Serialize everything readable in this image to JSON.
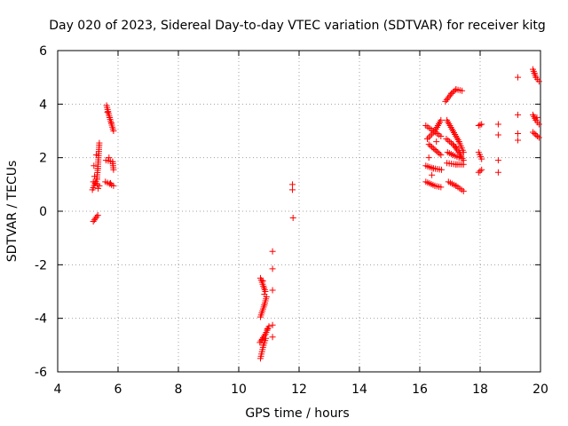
{
  "chart_data": {
    "type": "scatter",
    "title": "Day 020 of 2023, Sidereal Day-to-day VTEC variation (SDTVAR) for receiver kitg",
    "xlabel": "GPS time / hours",
    "ylabel": "SDTVAR / TECUs",
    "xlim": [
      4,
      20
    ],
    "ylim": [
      -6,
      6
    ],
    "xticks": [
      "4",
      "6",
      "8",
      "10",
      "12",
      "14",
      "16",
      "18",
      "20"
    ],
    "yticks": [
      "-6",
      "-4",
      "-2",
      "0",
      "2",
      "4",
      "6"
    ],
    "grid": true,
    "marker": "+",
    "marker_color": "#ff0000",
    "series": [
      {
        "name": "SDTVAR",
        "segments": [
          [
            [
              5.18,
              -0.38
            ],
            [
              5.33,
              -0.15
            ]
          ],
          [
            [
              5.15,
              0.8
            ],
            [
              5.3,
              1.2
            ],
            [
              5.33,
              1.6
            ],
            [
              5.38,
              2.55
            ]
          ],
          [
            [
              5.18,
              1.1
            ],
            [
              5.38,
              0.95
            ]
          ],
          [
            [
              5.62,
              3.95
            ],
            [
              5.72,
              3.5
            ],
            [
              5.85,
              3.0
            ]
          ],
          [
            [
              5.6,
              1.9
            ],
            [
              5.82,
              1.85
            ],
            [
              5.85,
              1.55
            ]
          ],
          [
            [
              5.58,
              1.1
            ],
            [
              5.85,
              0.95
            ]
          ],
          [
            [
              10.72,
              -2.5
            ],
            [
              10.82,
              -2.8
            ],
            [
              10.88,
              -3.0
            ]
          ],
          [
            [
              10.72,
              -3.95
            ],
            [
              10.85,
              -3.5
            ],
            [
              10.92,
              -3.2
            ]
          ],
          [
            [
              10.7,
              -4.9
            ],
            [
              10.88,
              -4.6
            ],
            [
              11.0,
              -4.3
            ]
          ],
          [
            [
              10.72,
              -5.5
            ],
            [
              10.82,
              -5.0
            ],
            [
              10.9,
              -4.75
            ]
          ],
          [
            [
              16.2,
              3.2
            ],
            [
              16.45,
              3.0
            ],
            [
              16.7,
              2.8
            ]
          ],
          [
            [
              16.3,
              2.5
            ],
            [
              16.5,
              2.3
            ],
            [
              16.7,
              2.1
            ]
          ],
          [
            [
              16.2,
              1.7
            ],
            [
              16.45,
              1.6
            ],
            [
              16.72,
              1.55
            ]
          ],
          [
            [
              16.2,
              1.1
            ],
            [
              16.5,
              0.95
            ],
            [
              16.7,
              0.9
            ]
          ],
          [
            [
              16.25,
              2.7
            ],
            [
              16.5,
              3.0
            ],
            [
              16.7,
              3.4
            ]
          ],
          [
            [
              16.85,
              4.1
            ],
            [
              17.05,
              4.4
            ],
            [
              17.2,
              4.55
            ],
            [
              17.4,
              4.5
            ]
          ],
          [
            [
              16.88,
              2.7
            ],
            [
              17.1,
              2.5
            ],
            [
              17.3,
              2.2
            ],
            [
              17.45,
              1.9
            ]
          ],
          [
            [
              16.9,
              3.4
            ],
            [
              17.1,
              3.0
            ],
            [
              17.3,
              2.6
            ],
            [
              17.45,
              2.2
            ]
          ],
          [
            [
              16.92,
              2.2
            ],
            [
              17.1,
              2.1
            ],
            [
              17.3,
              2.0
            ]
          ],
          [
            [
              16.9,
              1.8
            ],
            [
              17.2,
              1.75
            ],
            [
              17.45,
              1.75
            ]
          ],
          [
            [
              16.95,
              1.1
            ],
            [
              17.2,
              0.95
            ],
            [
              17.45,
              0.75
            ]
          ],
          [
            [
              17.95,
              3.2
            ],
            [
              18.05,
              3.25
            ]
          ],
          [
            [
              17.95,
              2.2
            ],
            [
              18.05,
              1.95
            ]
          ],
          [
            [
              17.95,
              1.45
            ],
            [
              18.05,
              1.55
            ]
          ],
          [
            [
              19.75,
              5.3
            ],
            [
              19.85,
              5.0
            ],
            [
              19.95,
              4.85
            ]
          ],
          [
            [
              19.75,
              3.6
            ],
            [
              19.85,
              3.4
            ],
            [
              19.95,
              3.25
            ]
          ],
          [
            [
              19.75,
              2.95
            ],
            [
              19.95,
              2.75
            ]
          ]
        ],
        "points": [
          [
            5.2,
            1.7
          ],
          [
            5.28,
            2.1
          ],
          [
            5.22,
            1.3
          ],
          [
            5.34,
            0.85
          ],
          [
            5.65,
            3.7
          ],
          [
            5.78,
            3.3
          ],
          [
            5.7,
            2.0
          ],
          [
            5.75,
            1.05
          ],
          [
            10.8,
            -2.6
          ],
          [
            10.85,
            -3.1
          ],
          [
            10.78,
            -4.8
          ],
          [
            10.95,
            -4.4
          ],
          [
            11.12,
            -1.5
          ],
          [
            11.12,
            -2.15
          ],
          [
            11.12,
            -2.95
          ],
          [
            11.12,
            -4.25
          ],
          [
            11.12,
            -4.7
          ],
          [
            11.78,
            1.0
          ],
          [
            11.78,
            0.8
          ],
          [
            11.8,
            -0.25
          ],
          [
            16.3,
            2.0
          ],
          [
            16.55,
            2.6
          ],
          [
            16.4,
            1.35
          ],
          [
            17.0,
            3.2
          ],
          [
            17.2,
            2.4
          ],
          [
            17.35,
            2.05
          ],
          [
            18.6,
            3.25
          ],
          [
            18.6,
            2.85
          ],
          [
            18.6,
            1.9
          ],
          [
            18.6,
            1.45
          ],
          [
            19.25,
            5.0
          ],
          [
            19.25,
            3.6
          ],
          [
            19.25,
            2.9
          ],
          [
            19.25,
            2.65
          ],
          [
            19.8,
            5.15
          ],
          [
            19.88,
            3.5
          ],
          [
            19.85,
            2.85
          ]
        ]
      }
    ]
  }
}
